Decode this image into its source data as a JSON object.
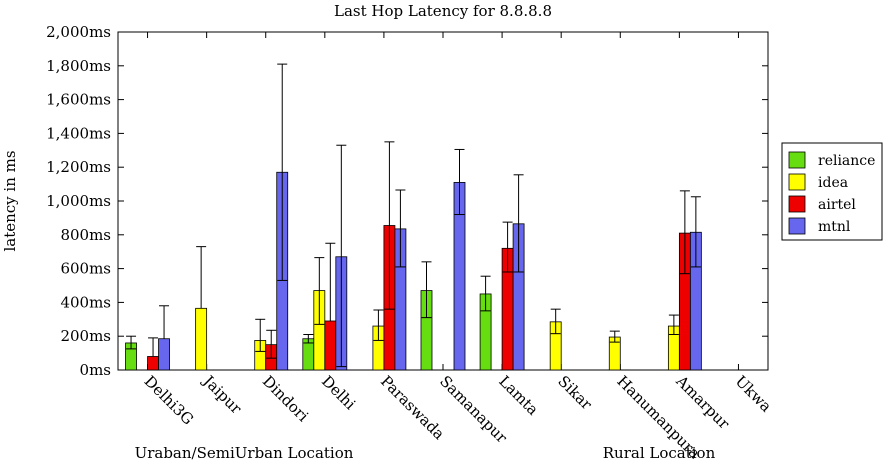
{
  "chart_data": {
    "type": "bar",
    "title": "Last Hop Latency for 8.8.8.8",
    "xlabel": "",
    "ylabel": "latency in ms",
    "ylim": [
      0,
      2000
    ],
    "yticks": [
      0,
      200,
      400,
      600,
      800,
      1000,
      1200,
      1400,
      1600,
      1800,
      2000
    ],
    "ytick_labels": [
      "0ms",
      "200ms",
      "400ms",
      "600ms",
      "800ms",
      "1,000ms",
      "1,200ms",
      "1,400ms",
      "1,600ms",
      "1,800ms",
      "2,000ms"
    ],
    "grid": false,
    "legend_position": "right",
    "categories": [
      "Delhi3G",
      "Jaipur",
      "Dindori",
      "Delhi",
      "Paraswada",
      "Samanapur",
      "Lamta",
      "Sikar",
      "Hanumanpura",
      "Amarpur",
      "Ukwa"
    ],
    "group_labels": [
      "Uraban/SemiUrban Location",
      "Rural Location"
    ],
    "series": [
      {
        "name": "reliance",
        "color": "#66dd11",
        "values": [
          160,
          null,
          null,
          185,
          null,
          470,
          450,
          null,
          null,
          null,
          null
        ],
        "err_low": [
          125,
          null,
          null,
          160,
          null,
          310,
          350,
          null,
          null,
          null,
          null
        ],
        "err_high": [
          200,
          null,
          null,
          210,
          null,
          640,
          555,
          null,
          null,
          null,
          null
        ]
      },
      {
        "name": "idea",
        "color": "#ffff00",
        "values": [
          null,
          365,
          175,
          470,
          260,
          null,
          null,
          285,
          195,
          260,
          null
        ],
        "err_low": [
          null,
          null,
          110,
          270,
          175,
          null,
          null,
          215,
          165,
          210,
          null
        ],
        "err_high": [
          null,
          730,
          300,
          665,
          355,
          null,
          null,
          360,
          230,
          325,
          null
        ]
      },
      {
        "name": "airtel",
        "color": "#ee0000",
        "values": [
          80,
          null,
          150,
          290,
          855,
          null,
          720,
          null,
          null,
          810,
          null
        ],
        "err_low": [
          null,
          null,
          70,
          null,
          360,
          null,
          580,
          null,
          null,
          570,
          null
        ],
        "err_high": [
          190,
          null,
          235,
          750,
          1350,
          null,
          875,
          null,
          null,
          1060,
          null
        ]
      },
      {
        "name": "mtnl",
        "color": "#6666ee",
        "values": [
          185,
          null,
          1170,
          670,
          835,
          1110,
          865,
          null,
          null,
          815,
          null
        ],
        "err_low": [
          null,
          null,
          530,
          20,
          610,
          920,
          580,
          null,
          null,
          610,
          null
        ],
        "err_high": [
          380,
          null,
          1810,
          1330,
          1065,
          1305,
          1155,
          null,
          null,
          1025,
          null
        ]
      }
    ]
  }
}
